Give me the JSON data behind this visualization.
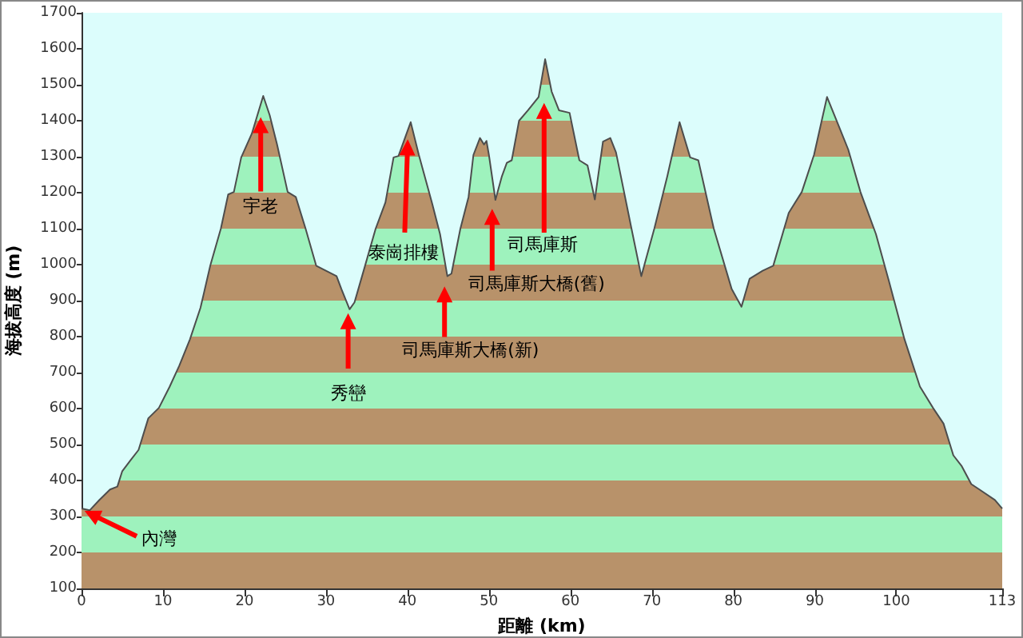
{
  "chart_data": {
    "type": "area",
    "xlabel": "距離 (km)",
    "ylabel": "海拔高度 (m)",
    "xlim": [
      0,
      113
    ],
    "xticks": [
      0,
      10,
      20,
      30,
      40,
      50,
      60,
      70,
      80,
      90,
      100,
      113
    ],
    "ylim": [
      100,
      1700
    ],
    "yticks": [
      100,
      200,
      300,
      400,
      500,
      600,
      700,
      800,
      900,
      1000,
      1100,
      1200,
      1300,
      1400,
      1500,
      1600,
      1700
    ],
    "x": [
      0,
      1,
      2.2,
      3.5,
      4.4,
      5,
      6,
      7,
      8.2,
      9.5,
      10.8,
      12,
      13.3,
      14.6,
      15.8,
      17.1,
      18,
      18.7,
      19.6,
      20.9,
      22.3,
      23.1,
      24,
      25.3,
      26.3,
      27.5,
      28.8,
      30,
      31.3,
      31.9,
      32.9,
      33.5,
      34.8,
      36.1,
      37.3,
      38.3,
      38.9,
      40.4,
      41.4,
      43,
      44,
      44.9,
      45.4,
      46.5,
      47.5,
      48.1,
      48.9,
      49.4,
      49.7,
      50,
      50.8,
      51.6,
      52.2,
      52.8,
      53.7,
      54.8,
      56.1,
      56.9,
      57.7,
      58.6,
      59.9,
      61.1,
      62.1,
      63,
      64,
      64.9,
      65.6,
      67.5,
      68.7,
      70.3,
      71.9,
      73.4,
      74.7,
      75.7,
      77.6,
      79.8,
      81,
      82,
      83.6,
      84.9,
      86.8,
      88.4,
      89.9,
      91.5,
      92.8,
      94.1,
      95.6,
      97.5,
      99.1,
      101,
      102.9,
      104.5,
      105.8,
      107,
      108,
      109.2,
      110.2,
      112.1,
      113
    ],
    "series": [
      {
        "color": "#4d4d4d",
        "values": [
          322,
          317,
          346,
          375,
          383,
          426,
          456,
          485,
          573,
          602,
          660,
          719,
          792,
          880,
          997,
          1100,
          1195,
          1202,
          1298,
          1364,
          1469,
          1415,
          1334,
          1202,
          1188,
          1100,
          997,
          983,
          968,
          932,
          876,
          895,
          997,
          1100,
          1173,
          1298,
          1302,
          1396,
          1305,
          1173,
          1085,
          968,
          975,
          1100,
          1188,
          1305,
          1352,
          1334,
          1344,
          1305,
          1180,
          1246,
          1283,
          1290,
          1400,
          1429,
          1466,
          1571,
          1481,
          1429,
          1422,
          1290,
          1276,
          1181,
          1342,
          1352,
          1312,
          1100,
          968,
          1100,
          1246,
          1396,
          1298,
          1290,
          1100,
          932,
          883,
          961,
          983,
          997,
          1144,
          1202,
          1305,
          1466,
          1393,
          1320,
          1202,
          1085,
          954,
          793,
          661,
          602,
          558,
          470,
          441,
          390,
          375,
          346,
          322
        ]
      }
    ],
    "annotations": [
      "內灣",
      "宇老",
      "秀巒",
      "泰崗排樓",
      "司馬庫斯大橋(新)",
      "司馬庫斯大橋(舊)",
      "司馬庫斯"
    ]
  }
}
